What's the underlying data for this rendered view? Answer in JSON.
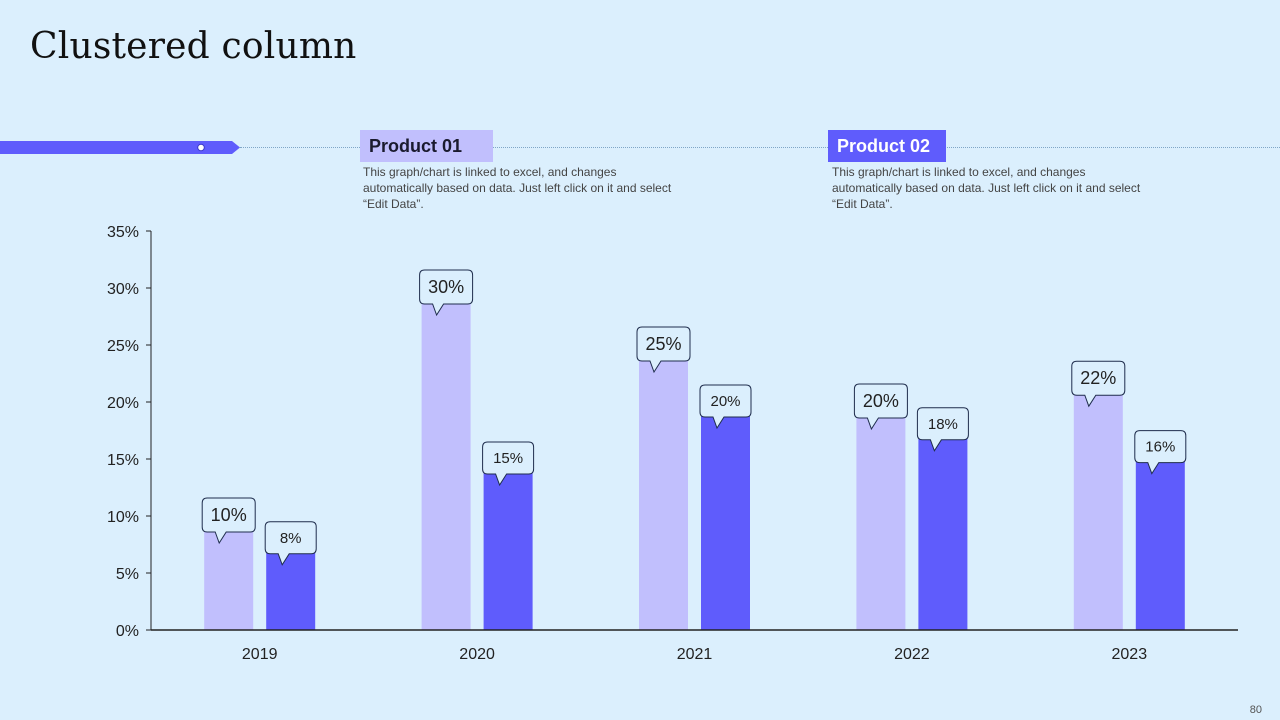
{
  "slide": {
    "title": "Clustered column",
    "page_number": "80"
  },
  "products": [
    {
      "name": "Product 01",
      "description": "This graph/chart is linked to excel, and changes automatically based on data. Just left click on it and select “Edit Data”.",
      "color": "#c1bffd"
    },
    {
      "name": "Product 02",
      "description": "This graph/chart is linked to excel, and changes automatically based on data. Just left click on it and select “Edit Data”.",
      "color": "#5f5cfc"
    }
  ],
  "colors": {
    "background": "#dbeffd",
    "accent": "#5f5cfc",
    "light": "#c1bffd",
    "callout_fill": "#dbeffd",
    "callout_stroke": "#1f2d4d"
  },
  "chart_data": {
    "type": "bar",
    "title": "",
    "xlabel": "",
    "ylabel": "",
    "categories": [
      "2019",
      "2020",
      "2021",
      "2022",
      "2023"
    ],
    "ylim": [
      0,
      35
    ],
    "yticks": [
      0,
      5,
      10,
      15,
      20,
      25,
      30,
      35
    ],
    "ytick_labels": [
      "0%",
      "5%",
      "10%",
      "15%",
      "20%",
      "25%",
      "30%",
      "35%"
    ],
    "series": [
      {
        "name": "Product 01",
        "values": [
          10,
          30,
          25,
          20,
          22
        ],
        "labels": [
          "10%",
          "30%",
          "25%",
          "20%",
          "22%"
        ]
      },
      {
        "name": "Product 02",
        "values": [
          8,
          15,
          20,
          18,
          16
        ],
        "labels": [
          "8%",
          "15%",
          "20%",
          "18%",
          "16%"
        ]
      }
    ]
  }
}
